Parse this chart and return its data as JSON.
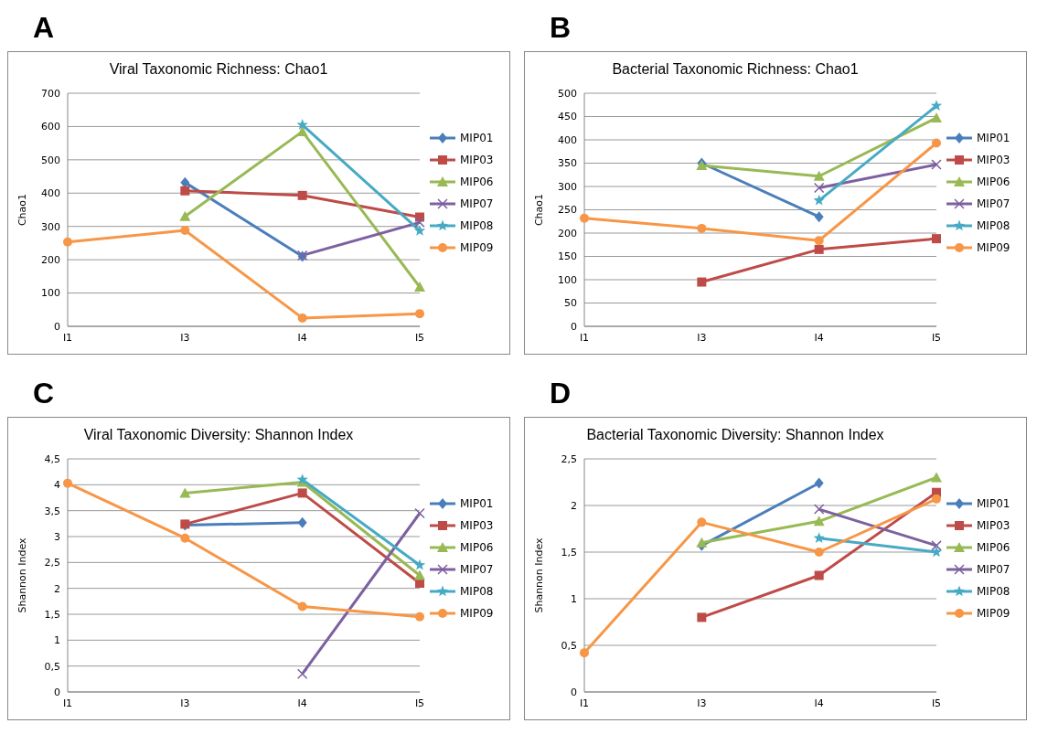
{
  "chart_data": [
    {
      "type": "line",
      "title": "Viral Taxonomic Richness: Chao1",
      "ylabel": "Chao1",
      "annotations": [
        "A"
      ],
      "categories": [
        "I1",
        "I3",
        "I4",
        "I5"
      ],
      "ylim": [
        0,
        700
      ],
      "yticks": [
        0,
        100,
        200,
        300,
        400,
        500,
        600,
        700
      ],
      "grid": "y",
      "legend": "right",
      "series": [
        {
          "name": "MIP01",
          "color": "#4a7ebb",
          "marker": "diamond",
          "values": [
            null,
            432,
            210,
            null
          ]
        },
        {
          "name": "MIP03",
          "color": "#be4b48",
          "marker": "square",
          "values": [
            null,
            407,
            393,
            328
          ]
        },
        {
          "name": "MIP06",
          "color": "#98b954",
          "marker": "triangle",
          "values": [
            null,
            330,
            585,
            118
          ]
        },
        {
          "name": "MIP07",
          "color": "#7d60a0",
          "marker": "cross",
          "values": [
            null,
            null,
            213,
            312
          ]
        },
        {
          "name": "MIP08",
          "color": "#46aac5",
          "marker": "star",
          "values": [
            null,
            null,
            605,
            287
          ]
        },
        {
          "name": "MIP09",
          "color": "#f79646",
          "marker": "circle",
          "values": [
            253,
            288,
            25,
            38
          ]
        }
      ]
    },
    {
      "type": "line",
      "title": "Bacterial Taxonomic Richness: Chao1",
      "ylabel": "Chao1",
      "annotations": [
        "B"
      ],
      "categories": [
        "I1",
        "I3",
        "I4",
        "I5"
      ],
      "ylim": [
        0,
        500
      ],
      "yticks": [
        0,
        50,
        100,
        150,
        200,
        250,
        300,
        350,
        400,
        450,
        500
      ],
      "grid": "y",
      "legend": "right",
      "series": [
        {
          "name": "MIP01",
          "color": "#4a7ebb",
          "marker": "diamond",
          "values": [
            null,
            350,
            235,
            null
          ]
        },
        {
          "name": "MIP03",
          "color": "#be4b48",
          "marker": "square",
          "values": [
            null,
            95,
            165,
            188
          ]
        },
        {
          "name": "MIP06",
          "color": "#98b954",
          "marker": "triangle",
          "values": [
            null,
            345,
            322,
            447
          ]
        },
        {
          "name": "MIP07",
          "color": "#7d60a0",
          "marker": "cross",
          "values": [
            null,
            null,
            297,
            347
          ]
        },
        {
          "name": "MIP08",
          "color": "#46aac5",
          "marker": "star",
          "values": [
            null,
            null,
            270,
            473
          ]
        },
        {
          "name": "MIP09",
          "color": "#f79646",
          "marker": "circle",
          "values": [
            232,
            210,
            184,
            393
          ]
        }
      ]
    },
    {
      "type": "line",
      "title": "Viral Taxonomic Diversity: Shannon Index",
      "ylabel": "Shannon Index",
      "annotations": [
        "C"
      ],
      "categories": [
        "I1",
        "I3",
        "I4",
        "I5"
      ],
      "ylim": [
        0,
        4.5
      ],
      "yticks": [
        0,
        {
          "value": 0.5,
          "label": "0,5"
        },
        1,
        {
          "value": 1.5,
          "label": "1,5"
        },
        2,
        {
          "value": 2.5,
          "label": "2,5"
        },
        3,
        {
          "value": 3.5,
          "label": "3,5"
        },
        4,
        {
          "value": 4.5,
          "label": "4,5"
        }
      ],
      "grid": "y",
      "legend": "right",
      "series": [
        {
          "name": "MIP01",
          "color": "#4a7ebb",
          "marker": "diamond",
          "values": [
            null,
            3.22,
            3.27,
            null
          ]
        },
        {
          "name": "MIP03",
          "color": "#be4b48",
          "marker": "square",
          "values": [
            null,
            3.24,
            3.84,
            2.1
          ]
        },
        {
          "name": "MIP06",
          "color": "#98b954",
          "marker": "triangle",
          "values": [
            null,
            3.84,
            4.05,
            2.25
          ]
        },
        {
          "name": "MIP07",
          "color": "#7d60a0",
          "marker": "cross",
          "values": [
            null,
            null,
            0.35,
            3.45
          ]
        },
        {
          "name": "MIP08",
          "color": "#46aac5",
          "marker": "star",
          "values": [
            null,
            null,
            4.1,
            2.45
          ]
        },
        {
          "name": "MIP09",
          "color": "#f79646",
          "marker": "circle",
          "values": [
            4.03,
            2.97,
            1.65,
            1.45
          ]
        }
      ]
    },
    {
      "type": "line",
      "title": "Bacterial Taxonomic Diversity: Shannon Index",
      "ylabel": "Shannon Index",
      "annotations": [
        "D"
      ],
      "categories": [
        "I1",
        "I3",
        "I4",
        "I5"
      ],
      "ylim": [
        0,
        2.5
      ],
      "yticks": [
        0,
        {
          "value": 0.5,
          "label": "0,5"
        },
        1,
        {
          "value": 1.5,
          "label": "1,5"
        },
        2,
        {
          "value": 2.5,
          "label": "2,5"
        }
      ],
      "grid": "y",
      "legend": "right",
      "series": [
        {
          "name": "MIP01",
          "color": "#4a7ebb",
          "marker": "diamond",
          "values": [
            null,
            1.57,
            2.24,
            null
          ]
        },
        {
          "name": "MIP03",
          "color": "#be4b48",
          "marker": "square",
          "values": [
            null,
            0.8,
            1.25,
            2.14
          ]
        },
        {
          "name": "MIP06",
          "color": "#98b954",
          "marker": "triangle",
          "values": [
            null,
            1.6,
            1.83,
            2.3
          ]
        },
        {
          "name": "MIP07",
          "color": "#7d60a0",
          "marker": "cross",
          "values": [
            null,
            null,
            1.96,
            1.57
          ]
        },
        {
          "name": "MIP08",
          "color": "#46aac5",
          "marker": "star",
          "values": [
            null,
            null,
            1.65,
            1.5
          ]
        },
        {
          "name": "MIP09",
          "color": "#f79646",
          "marker": "circle",
          "values": [
            0.42,
            1.82,
            1.5,
            2.07
          ]
        }
      ]
    }
  ]
}
